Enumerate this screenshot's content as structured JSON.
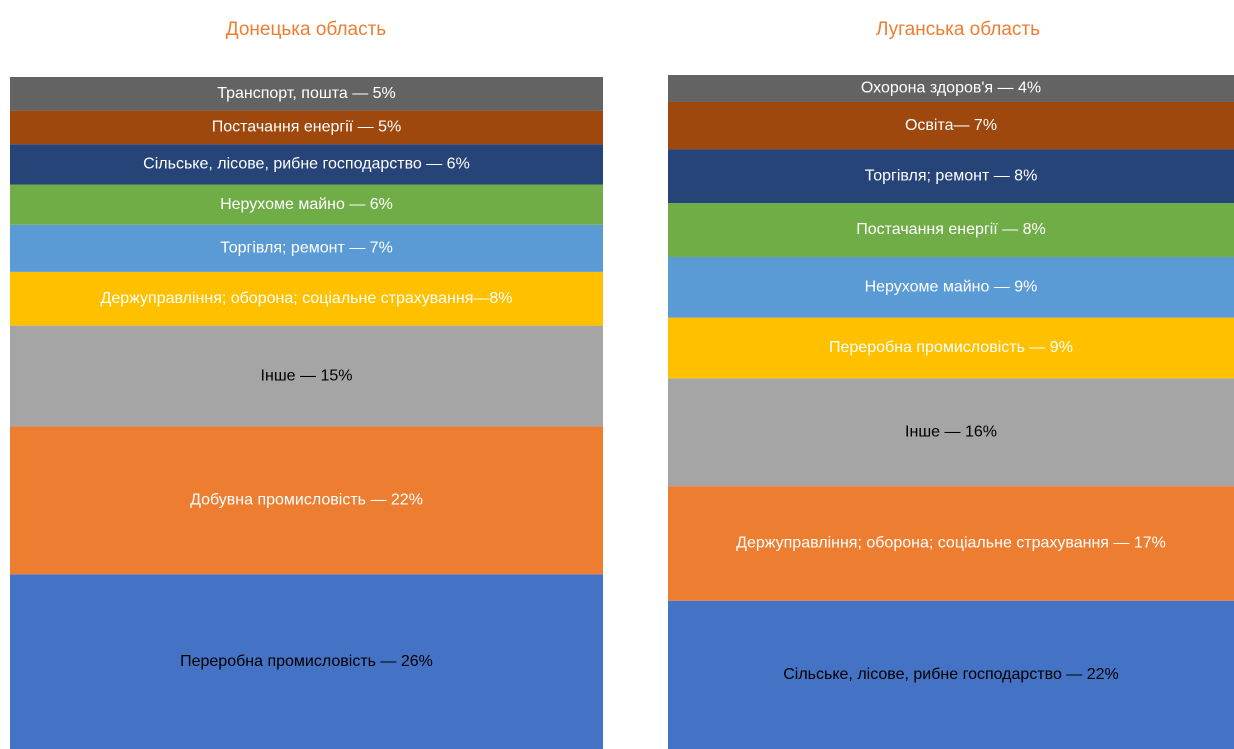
{
  "chart_data": [
    {
      "type": "stacked-bar",
      "title": "Донецька область",
      "ylim": [
        0,
        100
      ],
      "series": [
        {
          "name": "Переробна промисловість",
          "color": "#4472c4",
          "values": [
            26
          ],
          "value_labels": [
            "Переробна промисловість — 26%"
          ]
        },
        {
          "name": "Добувна промисловість",
          "color": "#ed7d31",
          "values": [
            22
          ],
          "value_labels": [
            "Добувна промисловість — 22%"
          ]
        },
        {
          "name": "Інше",
          "color": "#a5a5a5",
          "values": [
            15
          ],
          "value_labels": [
            "Інше — 15%"
          ]
        },
        {
          "name": "Держуправління; оборона; соціальне страхування",
          "color": "#ffc000",
          "values": [
            8
          ],
          "value_labels": [
            "Держуправління; оборона; соціальне страхування—8%"
          ]
        },
        {
          "name": "Торгівля; ремонт",
          "color": "#5b9bd5",
          "values": [
            7
          ],
          "value_labels": [
            "Торгівля; ремонт — 7%"
          ]
        },
        {
          "name": "Нерухоме майно",
          "color": "#70ad47",
          "values": [
            6
          ],
          "value_labels": [
            "Нерухоме майно — 6%"
          ]
        },
        {
          "name": "Сільське, лісове, рибне господарство",
          "color": "#264478",
          "values": [
            6
          ],
          "value_labels": [
            "Сільське, лісове, рибне господарство — 6%"
          ]
        },
        {
          "name": "Постачання енергії",
          "color": "#9e480e",
          "values": [
            5
          ],
          "value_labels": [
            "Постачання енергії — 5%"
          ]
        },
        {
          "name": "Транспорт, пошта",
          "color": "#636363",
          "values": [
            5
          ],
          "value_labels": [
            "Транспорт, пошта — 5%"
          ]
        }
      ]
    },
    {
      "type": "stacked-bar",
      "title": "Луганська область",
      "ylim": [
        0,
        100
      ],
      "series": [
        {
          "name": "Сільське, лісове, рибне господарство",
          "color": "#4472c4",
          "values": [
            22
          ],
          "value_labels": [
            "Сільське, лісове, рибне господарство — 22%"
          ]
        },
        {
          "name": "Держуправління; оборона; соціальне страхування",
          "color": "#ed7d31",
          "values": [
            17
          ],
          "value_labels": [
            "Держуправління; оборона; соціальне страхування — 17%"
          ]
        },
        {
          "name": "Інше",
          "color": "#a5a5a5",
          "values": [
            16
          ],
          "value_labels": [
            "Інше — 16%"
          ]
        },
        {
          "name": "Переробна промисловість",
          "color": "#ffc000",
          "values": [
            9
          ],
          "value_labels": [
            "Переробна промисловість — 9%"
          ]
        },
        {
          "name": "Нерухоме майно",
          "color": "#5b9bd5",
          "values": [
            9
          ],
          "value_labels": [
            "Нерухоме майно — 9%"
          ]
        },
        {
          "name": "Постачання енергії",
          "color": "#70ad47",
          "values": [
            8
          ],
          "value_labels": [
            "Постачання енергії — 8%"
          ]
        },
        {
          "name": "Торгівля; ремонт",
          "color": "#264478",
          "values": [
            8
          ],
          "value_labels": [
            "Торгівля; ремонт — 8%"
          ]
        },
        {
          "name": "Освіта",
          "color": "#9e480e",
          "values": [
            7
          ],
          "value_labels": [
            "Освіта— 7%"
          ]
        },
        {
          "name": "Охорона здоров'я",
          "color": "#636363",
          "values": [
            4
          ],
          "value_labels": [
            "Охорона здоров'я — 4%"
          ]
        }
      ]
    }
  ]
}
